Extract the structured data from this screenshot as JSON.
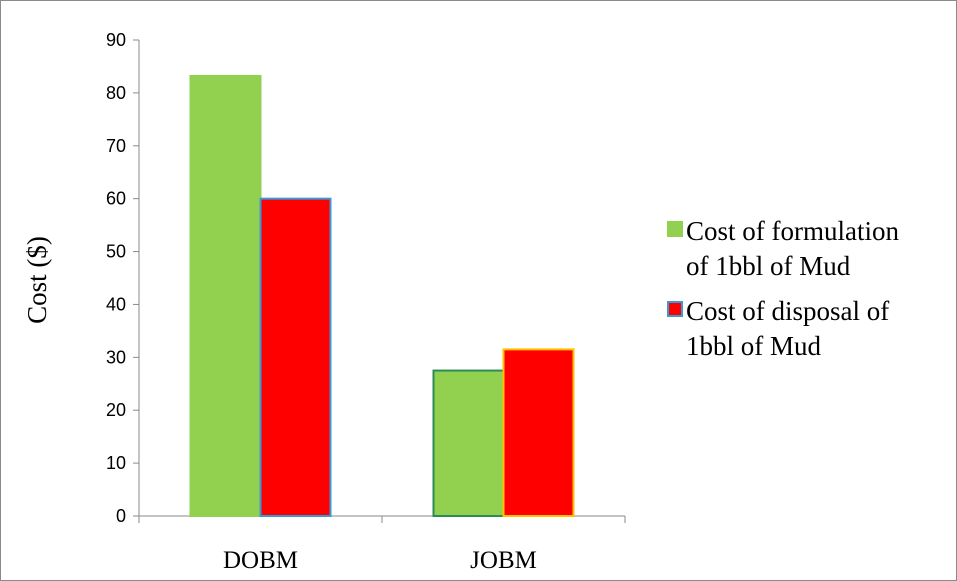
{
  "chart_data": {
    "type": "bar",
    "title": "",
    "xlabel": "",
    "ylabel": "Cost ($)",
    "categories": [
      "DOBM",
      "JOBM"
    ],
    "ylim": [
      0,
      90
    ],
    "yticks": [
      0,
      10,
      20,
      30,
      40,
      50,
      60,
      70,
      80,
      90
    ],
    "grid": false,
    "legend_position": "right",
    "series": [
      {
        "name_lines": [
          "Cost of formulation",
          "of 1bbl of Mud"
        ],
        "values": [
          83.2,
          27.5
        ],
        "fill": "#92d050",
        "stroke": [
          "#92d050",
          "#2e8b57"
        ]
      },
      {
        "name_lines": [
          "Cost of disposal of",
          "1bbl of Mud"
        ],
        "values": [
          60,
          31.5
        ],
        "fill": "#ff0000",
        "stroke": [
          "#3a9ad9",
          "#ffc000"
        ]
      }
    ]
  }
}
